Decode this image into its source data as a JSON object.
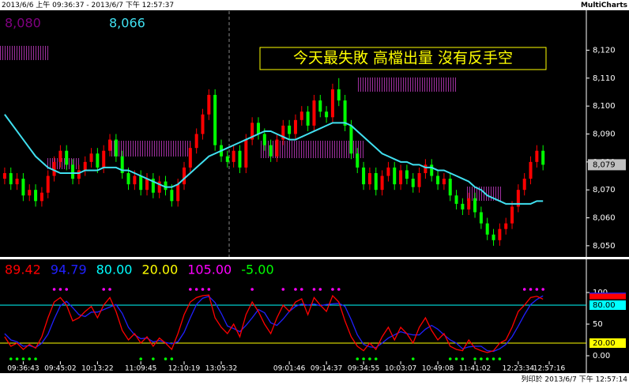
{
  "header": {
    "range": "2013/6/6 上午 09:36:37 - 2013/6/7 下午 12:57:37",
    "app": "MultiCharts"
  },
  "footer": "列印於 2013/6/7 下午 12:57:14",
  "chart_data": [
    {
      "type": "candlestick",
      "annotation": "今天最失敗 高檔出量 沒有反手空",
      "legend": [
        {
          "label": "8,080",
          "value": 8080,
          "color": "#800080"
        },
        {
          "label": "8,066",
          "value": 8066,
          "color": "#40e0f0"
        }
      ],
      "last_price_label": "8,079",
      "up_color": "#ff0000",
      "down_color": "#00ff00",
      "ylim": [
        8046,
        8134
      ],
      "yticks": [
        {
          "value": 8050,
          "label": "8,050"
        },
        {
          "value": 8060,
          "label": "8,060"
        },
        {
          "value": 8070,
          "label": "8,070"
        },
        {
          "value": 8080,
          "label": "8,080"
        },
        {
          "value": 8090,
          "label": "8,090"
        },
        {
          "value": 8100,
          "label": "8,100"
        },
        {
          "value": 8110,
          "label": "8,110"
        },
        {
          "value": 8120,
          "label": "8,120"
        }
      ],
      "xlim": [
        -0.5,
        94
      ],
      "xticks": [
        {
          "value": 3,
          "label": "09:36:43"
        },
        {
          "value": 9,
          "label": "09:45:02"
        },
        {
          "value": 15,
          "label": "10:13:22"
        },
        {
          "value": 22,
          "label": "11:09:45"
        },
        {
          "value": 29,
          "label": "12:10:19"
        },
        {
          "value": 35,
          "label": "13:05:32"
        },
        {
          "value": 46,
          "label": "09:01:46"
        },
        {
          "value": 52,
          "label": "09:14:37"
        },
        {
          "value": 58,
          "label": "09:34:55"
        },
        {
          "value": 64,
          "label": "10:03:07"
        },
        {
          "value": 70,
          "label": "10:49:08"
        },
        {
          "value": 76,
          "label": "11:41:02"
        },
        {
          "value": 83,
          "label": "12:23:34"
        },
        {
          "value": 88,
          "label": "12:57:16"
        }
      ],
      "ohlc": [
        [
          8074,
          8078,
          8072,
          8076
        ],
        [
          8076,
          8078,
          8070,
          8072
        ],
        [
          8072,
          8076,
          8070,
          8074
        ],
        [
          8074,
          8076,
          8066,
          8068
        ],
        [
          8068,
          8072,
          8066,
          8070
        ],
        [
          8070,
          8072,
          8064,
          8066
        ],
        [
          8066,
          8071,
          8064,
          8069
        ],
        [
          8069,
          8077,
          8067,
          8075
        ],
        [
          8075,
          8082,
          8073,
          8080
        ],
        [
          8080,
          8086,
          8078,
          8084
        ],
        [
          8084,
          8086,
          8077,
          8079
        ],
        [
          8079,
          8081,
          8072,
          8074
        ],
        [
          8074,
          8079,
          8072,
          8077
        ],
        [
          8077,
          8082,
          8075,
          8080
        ],
        [
          8080,
          8085,
          8078,
          8083
        ],
        [
          8083,
          8085,
          8076,
          8078
        ],
        [
          8078,
          8086,
          8076,
          8084
        ],
        [
          8084,
          8090,
          8082,
          8088
        ],
        [
          8088,
          8090,
          8080,
          8082
        ],
        [
          8082,
          8084,
          8074,
          8076
        ],
        [
          8076,
          8078,
          8070,
          8072
        ],
        [
          8072,
          8077,
          8070,
          8075
        ],
        [
          8075,
          8077,
          8068,
          8070
        ],
        [
          8070,
          8076,
          8068,
          8074
        ],
        [
          8074,
          8076,
          8067,
          8069
        ],
        [
          8069,
          8075,
          8067,
          8073
        ],
        [
          8073,
          8075,
          8068,
          8070
        ],
        [
          8070,
          8072,
          8064,
          8066
        ],
        [
          8066,
          8074,
          8064,
          8072
        ],
        [
          8072,
          8080,
          8070,
          8078
        ],
        [
          8078,
          8087,
          8076,
          8085
        ],
        [
          8085,
          8092,
          8083,
          8090
        ],
        [
          8090,
          8099,
          8088,
          8097
        ],
        [
          8097,
          8106,
          8095,
          8104
        ],
        [
          8104,
          8106,
          8084,
          8086
        ],
        [
          8086,
          8088,
          8080,
          8082
        ],
        [
          8082,
          8084,
          8078,
          8080
        ],
        [
          8080,
          8086,
          8078,
          8084
        ],
        [
          8084,
          8086,
          8076,
          8078
        ],
        [
          8078,
          8090,
          8076,
          8088
        ],
        [
          8088,
          8096,
          8086,
          8094
        ],
        [
          8094,
          8096,
          8088,
          8090
        ],
        [
          8090,
          8092,
          8084,
          8086
        ],
        [
          8086,
          8088,
          8080,
          8082
        ],
        [
          8082,
          8090,
          8080,
          8088
        ],
        [
          8088,
          8095,
          8086,
          8093
        ],
        [
          8093,
          8095,
          8088,
          8090
        ],
        [
          8090,
          8097,
          8088,
          8095
        ],
        [
          8095,
          8100,
          8093,
          8098
        ],
        [
          8098,
          8100,
          8091,
          8093
        ],
        [
          8093,
          8104,
          8091,
          8102
        ],
        [
          8102,
          8104,
          8096,
          8098
        ],
        [
          8098,
          8100,
          8094,
          8096
        ],
        [
          8096,
          8108,
          8094,
          8106
        ],
        [
          8106,
          8110,
          8100,
          8102
        ],
        [
          8102,
          8104,
          8091,
          8093
        ],
        [
          8093,
          8095,
          8081,
          8083
        ],
        [
          8083,
          8085,
          8076,
          8078
        ],
        [
          8078,
          8080,
          8070,
          8072
        ],
        [
          8072,
          8078,
          8070,
          8076
        ],
        [
          8076,
          8078,
          8068,
          8070
        ],
        [
          8070,
          8077,
          8068,
          8075
        ],
        [
          8075,
          8080,
          8073,
          8078
        ],
        [
          8078,
          8080,
          8070,
          8072
        ],
        [
          8072,
          8079,
          8070,
          8077
        ],
        [
          8077,
          8079,
          8072,
          8074
        ],
        [
          8074,
          8076,
          8069,
          8071
        ],
        [
          8071,
          8078,
          8069,
          8076
        ],
        [
          8076,
          8081,
          8074,
          8079
        ],
        [
          8079,
          8081,
          8073,
          8075
        ],
        [
          8075,
          8077,
          8070,
          8072
        ],
        [
          8072,
          8076,
          8070,
          8074
        ],
        [
          8074,
          8076,
          8066,
          8068
        ],
        [
          8068,
          8070,
          8063,
          8065
        ],
        [
          8065,
          8067,
          8061,
          8063
        ],
        [
          8063,
          8069,
          8061,
          8067
        ],
        [
          8067,
          8069,
          8060,
          8062
        ],
        [
          8062,
          8064,
          8056,
          8058
        ],
        [
          8058,
          8060,
          8052,
          8054
        ],
        [
          8054,
          8056,
          8050,
          8052
        ],
        [
          8052,
          8058,
          8050,
          8056
        ],
        [
          8056,
          8060,
          8054,
          8058
        ],
        [
          8058,
          8066,
          8056,
          8064
        ],
        [
          8064,
          8072,
          8062,
          8070
        ],
        [
          8070,
          8076,
          8068,
          8074
        ],
        [
          8074,
          8082,
          8072,
          8080
        ],
        [
          8080,
          8086,
          8078,
          8084
        ],
        [
          8084,
          8086,
          8077,
          8079
        ]
      ],
      "series": [
        {
          "color": "#40e0f0",
          "values": [
            8097,
            8094,
            8091,
            8088,
            8085,
            8082,
            8080,
            8078,
            8077,
            8076,
            8076,
            8076,
            8076,
            8077,
            8077,
            8077,
            8078,
            8078,
            8078,
            8077,
            8077,
            8076,
            8075,
            8074,
            8073,
            8072,
            8071,
            8071,
            8072,
            8074,
            8076,
            8078,
            8080,
            8082,
            8083,
            8084,
            8085,
            8086,
            8087,
            8088,
            8089,
            8090,
            8091,
            8091,
            8090,
            8089,
            8088,
            8088,
            8089,
            8090,
            8091,
            8092,
            8093,
            8094,
            8094,
            8094,
            8093,
            8091,
            8089,
            8087,
            8085,
            8083,
            8082,
            8081,
            8080,
            8080,
            8079,
            8079,
            8078,
            8078,
            8077,
            8077,
            8076,
            8075,
            8074,
            8073,
            8071,
            8070,
            8068,
            8067,
            8066,
            8065,
            8065,
            8065,
            8065,
            8065,
            8066,
            8066
          ]
        }
      ]
    },
    {
      "type": "line",
      "ylim": [
        -8.75,
        150
      ],
      "xlim": [
        -0.5,
        94
      ],
      "yticks": [
        {
          "value": 0,
          "label": "0.00"
        },
        50,
        100
      ],
      "levels": [
        {
          "value": 80,
          "label": "80.00",
          "color": "#00ffff"
        },
        {
          "value": 20,
          "label": "20.00",
          "color": "#ffff00"
        },
        {
          "value": 105,
          "label": "105.00",
          "color": "#ff00ff"
        },
        {
          "value": -5,
          "label": "-5.00",
          "color": "#00ff00"
        }
      ],
      "series": [
        {
          "color": "#ff0000",
          "values": [
            30,
            15,
            20,
            10,
            18,
            12,
            30,
            60,
            85,
            92,
            80,
            55,
            60,
            70,
            78,
            60,
            80,
            92,
            70,
            40,
            25,
            35,
            20,
            30,
            15,
            28,
            20,
            10,
            35,
            65,
            85,
            92,
            95,
            96,
            60,
            45,
            35,
            50,
            30,
            65,
            85,
            70,
            50,
            35,
            60,
            80,
            70,
            85,
            90,
            65,
            92,
            80,
            70,
            95,
            85,
            55,
            30,
            15,
            8,
            20,
            10,
            30,
            45,
            25,
            45,
            35,
            20,
            45,
            60,
            40,
            25,
            35,
            15,
            10,
            8,
            25,
            12,
            8,
            5,
            8,
            20,
            25,
            45,
            70,
            80,
            92,
            94,
            89.42
          ]
        },
        {
          "color": "#2020ff",
          "values": [
            35,
            25,
            22,
            15,
            16,
            13,
            20,
            34,
            58,
            79,
            86,
            76,
            65,
            62,
            69,
            69,
            73,
            77,
            81,
            67,
            45,
            33,
            27,
            28,
            22,
            24,
            21,
            19,
            22,
            37,
            60,
            81,
            91,
            94,
            84,
            67,
            47,
            43,
            38,
            48,
            60,
            73,
            68,
            52,
            48,
            58,
            70,
            78,
            82,
            80,
            82,
            79,
            81,
            82,
            83,
            78,
            57,
            33,
            18,
            14,
            13,
            20,
            28,
            33,
            38,
            35,
            33,
            33,
            42,
            48,
            42,
            33,
            25,
            20,
            11,
            14,
            15,
            15,
            8,
            7,
            11,
            18,
            30,
            47,
            65,
            81,
            89,
            94.79
          ]
        }
      ]
    }
  ]
}
